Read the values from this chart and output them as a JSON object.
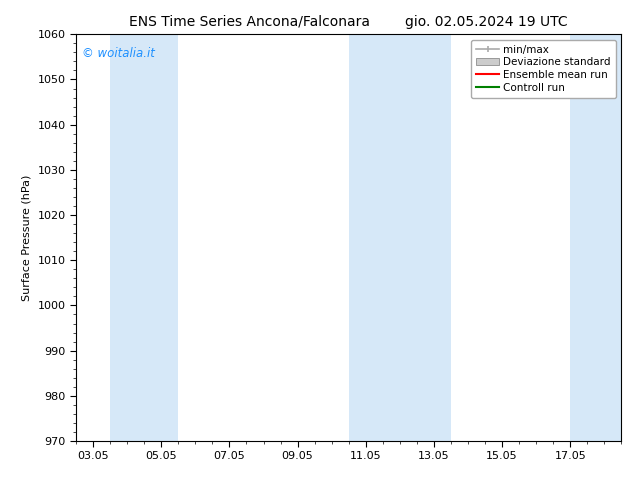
{
  "title_left": "ENS Time Series Ancona/Falconara",
  "title_right": "gio. 02.05.2024 19 UTC",
  "ylabel": "Surface Pressure (hPa)",
  "ylim": [
    970,
    1060
  ],
  "yticks": [
    970,
    980,
    990,
    1000,
    1010,
    1020,
    1030,
    1040,
    1050,
    1060
  ],
  "xtick_labels": [
    "03.05",
    "05.05",
    "07.05",
    "09.05",
    "11.05",
    "13.05",
    "15.05",
    "17.05"
  ],
  "xtick_positions": [
    0,
    2,
    4,
    6,
    8,
    10,
    12,
    14
  ],
  "xlim_start": -0.5,
  "xlim_end": 15.5,
  "watermark": "© woitalia.it",
  "watermark_color": "#1E90FF",
  "bg_color": "#FFFFFF",
  "plot_bg_color": "#FFFFFF",
  "shaded_regions": [
    {
      "x_start": 0.5,
      "x_end": 2.5,
      "color": "#d6e8f8"
    },
    {
      "x_start": 7.5,
      "x_end": 9.5,
      "color": "#d6e8f8"
    },
    {
      "x_start": 9.5,
      "x_end": 10.5,
      "color": "#d6e8f8"
    },
    {
      "x_start": 14.0,
      "x_end": 15.5,
      "color": "#d6e8f8"
    }
  ],
  "legend_items": [
    {
      "label": "min/max",
      "type": "errorbar",
      "color": "#AAAAAA"
    },
    {
      "label": "Deviazione standard",
      "type": "box",
      "color": "#CCCCCC"
    },
    {
      "label": "Ensemble mean run",
      "type": "line",
      "color": "#FF0000"
    },
    {
      "label": "Controll run",
      "type": "line",
      "color": "#008000"
    }
  ],
  "font_family": "DejaVu Sans",
  "title_fontsize": 10,
  "tick_fontsize": 8,
  "ylabel_fontsize": 8,
  "legend_fontsize": 7.5,
  "border_color": "#000000"
}
